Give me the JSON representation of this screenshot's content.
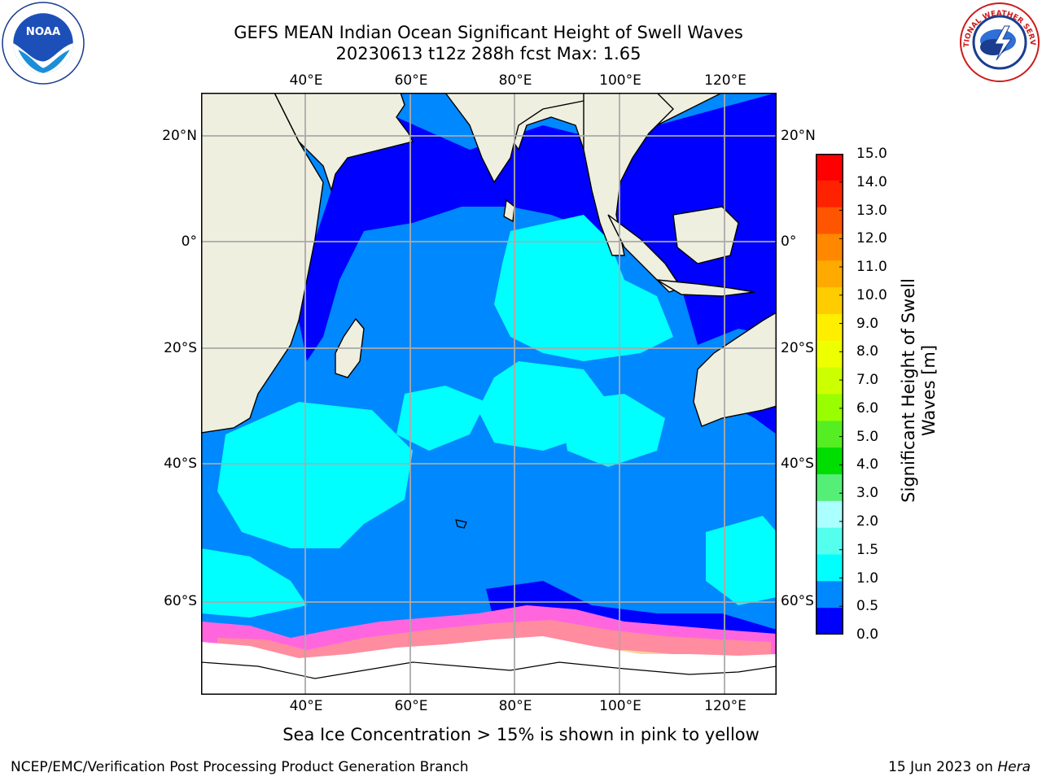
{
  "title": {
    "line1": "GEFS MEAN Indian Ocean Significant Height of Swell Waves",
    "line2": "20230613 t12z 288h fcst   Max: 1.65"
  },
  "axes": {
    "lon_ticks": [
      "40°E",
      "60°E",
      "80°E",
      "100°E",
      "120°E"
    ],
    "lat_ticks": [
      "20°N",
      "0°",
      "20°S",
      "40°S",
      "60°S"
    ]
  },
  "colorbar": {
    "title": "Significant Height of Swell Waves [m]",
    "labels": [
      "15.0",
      "14.0",
      "13.0",
      "12.0",
      "11.0",
      "10.0",
      "9.0",
      "8.0",
      "7.0",
      "6.0",
      "5.0",
      "4.0",
      "3.0",
      "2.0",
      "1.5",
      "1.0",
      "0.5",
      "0.0"
    ],
    "colors": [
      "#ff0000",
      "#ff2200",
      "#ff5500",
      "#ff8800",
      "#ffaa00",
      "#ffcc00",
      "#ffee00",
      "#eeff00",
      "#ccff00",
      "#99ff00",
      "#55ee22",
      "#00dd00",
      "#55ee77",
      "#aaffff",
      "#55ffee",
      "#00ffff",
      "#0088ff",
      "#0000ff"
    ]
  },
  "subtitle": "Sea Ice Concentration > 15% is shown in pink to yellow",
  "footer": {
    "left": "NCEP/EMC/Verification Post Processing Product Generation Branch",
    "right_date": "15 Jun 2023 on",
    "right_machine": "Hera"
  },
  "logos": {
    "noaa": "NOAA",
    "nws": "NATIONAL WEATHER SERVICE"
  },
  "colors": {
    "land": "#efefdf",
    "ocean_deep_blue": "#0000ff",
    "ocean_mid_blue": "#0088ff",
    "ocean_cyan": "#00ffff",
    "sea_ice_pink": "#ff66dd",
    "sea_ice_orange": "#ffbb55",
    "ice_white": "#ffffff",
    "gridline": "#aaaaaa"
  }
}
